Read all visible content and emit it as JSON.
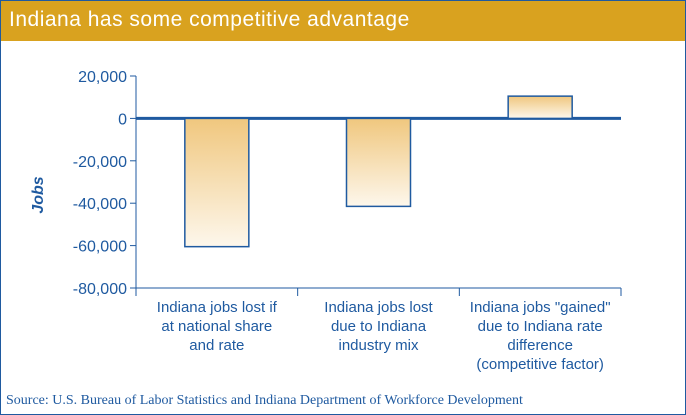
{
  "header": {
    "title": "Indiana has some competitive advantage"
  },
  "source": "Source: U.S. Bureau of Labor Statistics and Indiana Department of Workforce Development",
  "chart_data": {
    "type": "bar",
    "title": "",
    "xlabel": "",
    "ylabel": "Jobs",
    "ylim": [
      -80000,
      20000
    ],
    "yticks": [
      20000,
      0,
      -20000,
      -40000,
      -60000,
      -80000
    ],
    "ytick_labels": [
      "20,000",
      "0",
      "-20,000",
      "-40,000",
      "-60,000",
      "-80,000"
    ],
    "categories": [
      [
        "Indiana jobs lost if",
        "at national share",
        "and rate"
      ],
      [
        "Indiana jobs lost",
        "due to Indiana",
        "industry mix"
      ],
      [
        "Indiana jobs \"gained\"",
        "due to Indiana rate",
        "difference",
        "(competitive factor)"
      ]
    ],
    "values": [
      -60500,
      -41500,
      10500
    ],
    "grid": false,
    "colors": {
      "bar_top": "#f0c77e",
      "bar_bottom": "#fdf7ec",
      "bar_edge": "#1f5aa0",
      "axis": "#1f5aa0"
    }
  }
}
